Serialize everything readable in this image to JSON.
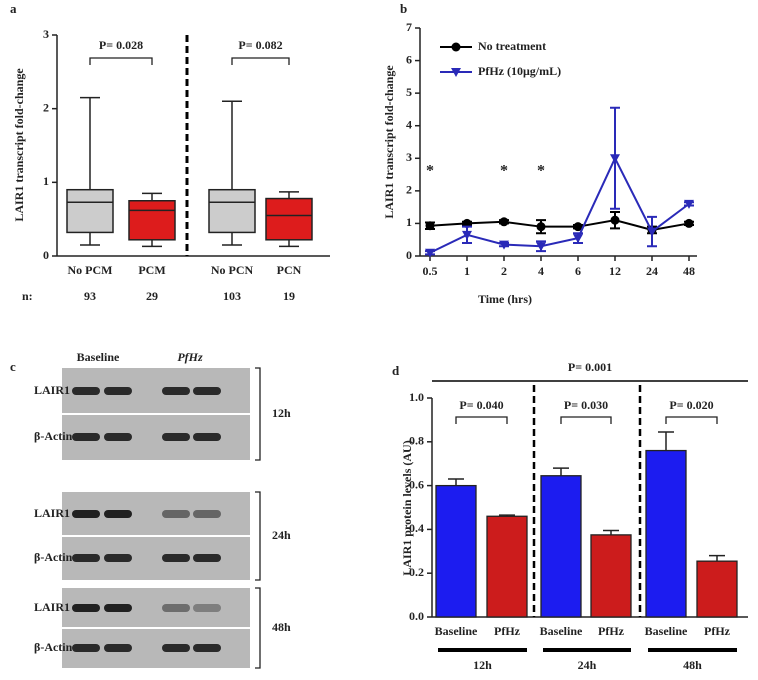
{
  "chart_data": [
    {
      "type": "box",
      "label": "a",
      "ylabel": "LAIR1 transcript fold-change",
      "categories": [
        "No PCM",
        "PCM",
        "No PCN",
        "PCN"
      ],
      "boxes": [
        {
          "min": 0.15,
          "q1": 0.32,
          "median": 0.73,
          "q3": 0.9,
          "max": 2.15
        },
        {
          "min": 0.13,
          "q1": 0.22,
          "median": 0.62,
          "q3": 0.75,
          "max": 0.85
        },
        {
          "min": 0.15,
          "q1": 0.32,
          "median": 0.73,
          "q3": 0.9,
          "max": 2.1
        },
        {
          "min": 0.13,
          "q1": 0.22,
          "median": 0.55,
          "q3": 0.78,
          "max": 0.87
        }
      ],
      "colors": [
        "#cccccc",
        "#dd1c1c",
        "#cccccc",
        "#dd1c1c"
      ],
      "count_label": "n:",
      "counts": [
        93,
        29,
        103,
        19
      ],
      "annotations": [
        "P= 0.028",
        "P= 0.082"
      ],
      "ylim": [
        0,
        3
      ],
      "yticks": [
        0,
        1,
        2,
        3
      ]
    },
    {
      "type": "line",
      "label": "b",
      "ylabel": "LAIR1 transcript fold-change",
      "xlabel": "Time (hrs)",
      "categories": [
        "0.5",
        "1",
        "2",
        "4",
        "6",
        "12",
        "24",
        "48"
      ],
      "series": [
        {
          "name": "No treatment",
          "color": "#000000",
          "marker": "circle",
          "values": [
            0.93,
            1.0,
            1.05,
            0.9,
            0.9,
            1.1,
            0.8,
            1.0
          ],
          "errors": [
            0.1,
            0.05,
            0.05,
            0.2,
            0.05,
            0.25,
            0.1,
            0.05
          ]
        },
        {
          "name": "PfHz (10μg/mL)",
          "color": "#2a2ab8",
          "marker": "triangle-down",
          "values": [
            0.1,
            0.65,
            0.35,
            0.3,
            0.55,
            3.0,
            0.75,
            1.6
          ],
          "errors": [
            0.05,
            0.25,
            0.05,
            0.15,
            0.15,
            1.55,
            0.45,
            0.05
          ]
        }
      ],
      "annotations": [
        {
          "text": "*",
          "at": "0.5"
        },
        {
          "text": "*",
          "at": "2"
        },
        {
          "text": "*",
          "at": "4"
        }
      ],
      "ylim": [
        0,
        7
      ],
      "yticks": [
        0,
        1,
        2,
        3,
        4,
        5,
        6,
        7
      ]
    },
    {
      "type": "bar",
      "label": "d",
      "ylabel": "LAIR1 protein levels (AU)",
      "categories": [
        "Baseline",
        "PfHz",
        "Baseline",
        "PfHz",
        "Baseline",
        "PfHz"
      ],
      "groups": [
        "12h",
        "24h",
        "48h"
      ],
      "values": [
        0.6,
        0.46,
        0.645,
        0.375,
        0.76,
        0.255
      ],
      "errors": [
        0.03,
        0.005,
        0.035,
        0.02,
        0.085,
        0.025
      ],
      "colors": [
        "#1c1cf0",
        "#cc1c1c",
        "#1c1cf0",
        "#cc1c1c",
        "#1c1cf0",
        "#cc1c1c"
      ],
      "annotations": [
        "P= 0.001",
        "P= 0.040",
        "P= 0.030",
        "P= 0.020"
      ],
      "ylim": [
        0,
        1
      ],
      "yticks": [
        {
          "value": 0,
          "label": "0.0"
        },
        0.2,
        0.4,
        0.6,
        0.8,
        {
          "value": 1,
          "label": "1.0"
        }
      ]
    }
  ],
  "blot": {
    "label": "c",
    "columns": [
      "Baseline",
      "PfHz"
    ],
    "panels": [
      {
        "time": "12h",
        "rows": [
          "LAIR1",
          "β-Actin"
        ]
      },
      {
        "time": "24h",
        "rows": [
          "LAIR1",
          "β-Actin"
        ]
      },
      {
        "time": "48h",
        "rows": [
          "LAIR1",
          "β-Actin"
        ]
      }
    ]
  }
}
